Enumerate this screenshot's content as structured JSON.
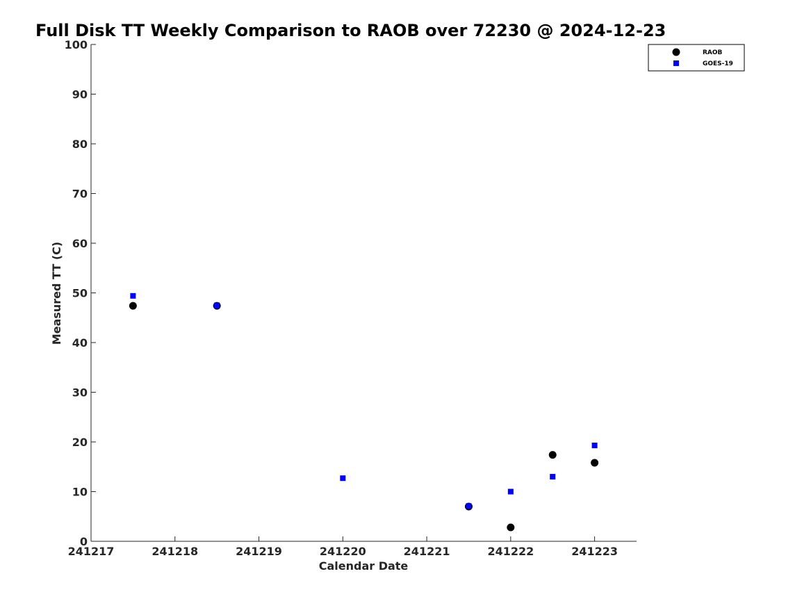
{
  "chart_data": {
    "type": "scatter",
    "title": "Full Disk TT Weekly Comparison to RAOB over 72230 @ 2024-12-23",
    "xlabel": "Calendar Date",
    "ylabel": "Measured TT (C)",
    "xlim": [
      241217,
      241223.5
    ],
    "ylim": [
      0,
      100
    ],
    "xticks": [
      241217,
      241218,
      241219,
      241220,
      241221,
      241222,
      241223
    ],
    "xtick_labels": [
      "241217",
      "241218",
      "241219",
      "241220",
      "241221",
      "241222",
      "241223"
    ],
    "yticks": [
      0,
      10,
      20,
      30,
      40,
      50,
      60,
      70,
      80,
      90,
      100
    ],
    "ytick_labels": [
      "0",
      "10",
      "20",
      "30",
      "40",
      "50",
      "60",
      "70",
      "80",
      "90",
      "100"
    ],
    "grid": false,
    "legend_position": "top-right",
    "series": [
      {
        "name": "RAOB",
        "marker": "circle",
        "color": "#000000",
        "x": [
          241217.5,
          241218.5,
          241221.5,
          241222.0,
          241222.5,
          241223.0
        ],
        "y": [
          47.4,
          47.4,
          7.0,
          2.8,
          17.4,
          15.8
        ]
      },
      {
        "name": "GOES-19",
        "marker": "square",
        "color": "#0000ff",
        "x": [
          241217.5,
          241218.5,
          241220.0,
          241221.5,
          241222.0,
          241222.5,
          241223.0
        ],
        "y": [
          49.4,
          47.5,
          12.7,
          7.1,
          10.0,
          13.0,
          19.3
        ]
      }
    ]
  }
}
